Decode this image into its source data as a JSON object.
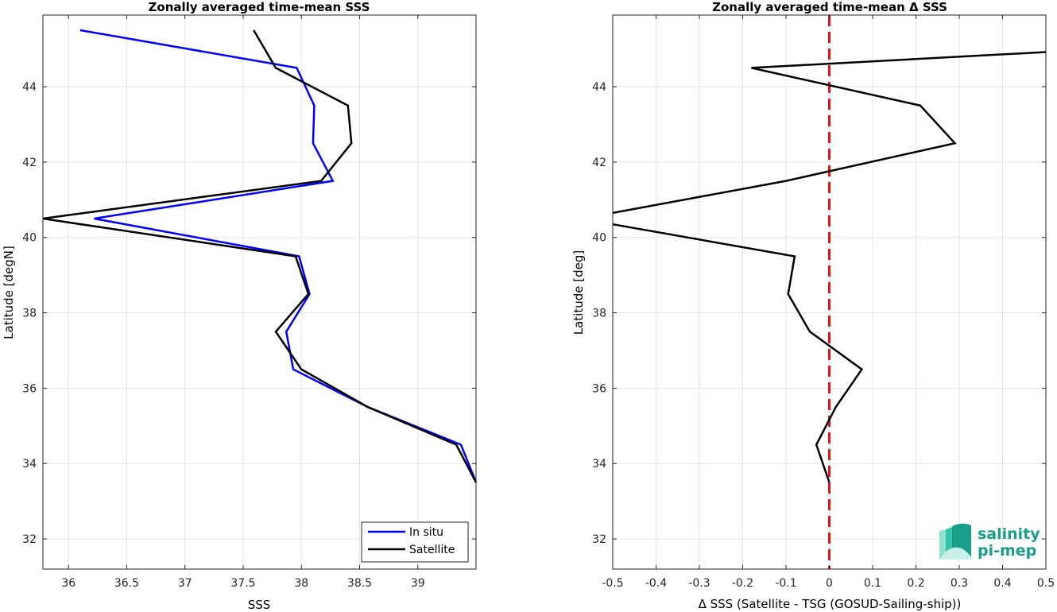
{
  "chart_data": [
    {
      "type": "line",
      "title": "Zonally averaged time-mean SSS",
      "xlabel": "SSS",
      "ylabel": "Latitude [degN]",
      "xlim": [
        35.78,
        39.5
      ],
      "ylim": [
        31.2,
        45.9
      ],
      "xticks": [
        36,
        36.5,
        37,
        37.5,
        38,
        38.5,
        39
      ],
      "xtick_labels": [
        "36",
        "36.5",
        "37",
        "37.5",
        "38",
        "38.5",
        "39"
      ],
      "yticks": [
        32,
        34,
        36,
        38,
        40,
        42,
        44
      ],
      "ytick_labels": [
        "32",
        "34",
        "36",
        "38",
        "40",
        "42",
        "44"
      ],
      "grid": true,
      "legend": "bottom-right",
      "series": [
        {
          "name": "In situ",
          "color": "#0000ff",
          "points": [
            [
              36.1,
              45.5
            ],
            [
              37.96,
              44.5
            ],
            [
              38.11,
              43.5
            ],
            [
              38.1,
              42.5
            ],
            [
              38.27,
              41.5
            ],
            [
              36.22,
              40.5
            ],
            [
              37.98,
              39.5
            ],
            [
              38.07,
              38.5
            ],
            [
              37.87,
              37.5
            ],
            [
              37.93,
              36.5
            ],
            [
              38.57,
              35.5
            ],
            [
              39.37,
              34.5
            ],
            [
              39.5,
              33.5
            ]
          ]
        },
        {
          "name": "Satellite",
          "color": "#000000",
          "points": [
            [
              37.59,
              45.5
            ],
            [
              37.78,
              44.5
            ],
            [
              38.4,
              43.5
            ],
            [
              38.43,
              42.5
            ],
            [
              38.17,
              41.5
            ],
            [
              35.78,
              40.5
            ],
            [
              37.95,
              39.5
            ],
            [
              38.06,
              38.5
            ],
            [
              37.78,
              37.5
            ],
            [
              38.0,
              36.5
            ],
            [
              38.57,
              35.5
            ],
            [
              39.33,
              34.5
            ],
            [
              39.5,
              33.5
            ]
          ]
        }
      ]
    },
    {
      "type": "line",
      "title": "Zonally averaged time-mean Δ SSS",
      "xlabel": "Δ SSS (Satellite - TSG (GOSUD-Sailing-ship))",
      "ylabel": "Latitude [deg]",
      "xlim": [
        -0.5,
        0.5
      ],
      "ylim": [
        31.2,
        45.9
      ],
      "xticks": [
        -0.5,
        -0.4,
        -0.3,
        -0.2,
        -0.1,
        0,
        0.1,
        0.2,
        0.3,
        0.4,
        0.5
      ],
      "xtick_labels": [
        "-0.5",
        "-0.4",
        "-0.3",
        "-0.2",
        "-0.1",
        "0",
        "0.1",
        "0.2",
        "0.3",
        "0.4",
        "0.5"
      ],
      "yticks": [
        32,
        34,
        36,
        38,
        40,
        42,
        44
      ],
      "ytick_labels": [
        "32",
        "34",
        "36",
        "38",
        "40",
        "42",
        "44"
      ],
      "grid": true,
      "reference_line": {
        "x": 0,
        "color": "#ee1111",
        "style": "dashed"
      },
      "series": [
        {
          "color": "#000000",
          "points": [
            [
              0.5,
              44.92
            ],
            [
              -0.18,
              44.5
            ],
            [
              0.21,
              43.5
            ],
            [
              0.29,
              42.5
            ],
            [
              -0.1,
              41.5
            ],
            [
              -0.5,
              40.65
            ]
          ]
        },
        {
          "color": "#000000",
          "points": [
            [
              -0.5,
              40.35
            ],
            [
              -0.08,
              39.5
            ],
            [
              -0.095,
              38.5
            ],
            [
              -0.045,
              37.5
            ],
            [
              0.075,
              36.5
            ],
            [
              0.015,
              35.5
            ],
            [
              -0.03,
              34.5
            ],
            [
              0.0,
              33.5
            ]
          ]
        }
      ]
    }
  ],
  "logo": {
    "line1": "salinity",
    "line2": "pi-mep",
    "colors": [
      "#1a9e8c",
      "#35c4a8",
      "#8fe0cf",
      "#c8efe7"
    ]
  }
}
